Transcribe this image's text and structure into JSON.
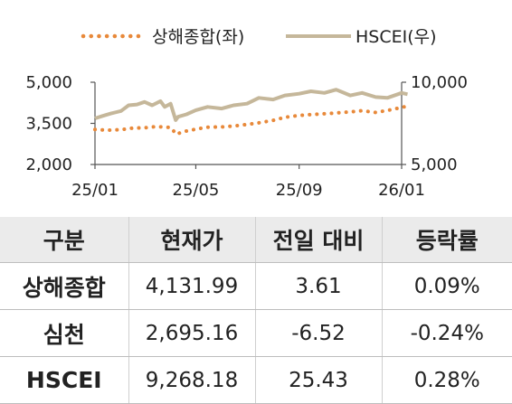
{
  "chart_data": {
    "type": "line",
    "legend": [
      {
        "name": "상해종합(좌)",
        "style": "dotted",
        "color": "#e8893a"
      },
      {
        "name": "HSCEI(우)",
        "style": "solid",
        "color": "#c5b79a"
      }
    ],
    "legend_position": "top",
    "x_ticks": [
      "25/01",
      "25/05",
      "25/09",
      "26/01"
    ],
    "y_left": {
      "ticks": [
        "2,000",
        "3,500",
        "5,000"
      ],
      "range": [
        2000,
        5000
      ]
    },
    "y_right": {
      "ticks": [
        "5,000",
        "10,000"
      ],
      "range": [
        5000,
        10000
      ]
    },
    "grid": false,
    "series": [
      {
        "name": "상해종합(좌)",
        "axis": "left",
        "x": [
          "2025-01-01",
          "2025-01-15",
          "2025-02-01",
          "2025-02-15",
          "2025-03-01",
          "2025-03-15",
          "2025-04-01",
          "2025-04-08",
          "2025-04-15",
          "2025-05-01",
          "2025-05-15",
          "2025-06-01",
          "2025-06-15",
          "2025-07-01",
          "2025-07-15",
          "2025-08-01",
          "2025-08-15",
          "2025-09-01",
          "2025-09-15",
          "2025-10-01",
          "2025-10-15",
          "2025-11-01",
          "2025-11-15",
          "2025-12-01",
          "2025-12-15",
          "2026-01-01",
          "2026-01-08"
        ],
        "values": [
          3280,
          3250,
          3270,
          3330,
          3340,
          3380,
          3350,
          3100,
          3190,
          3290,
          3360,
          3370,
          3400,
          3460,
          3520,
          3610,
          3720,
          3790,
          3820,
          3850,
          3880,
          3920,
          3960,
          3900,
          3970,
          4080,
          4132
        ]
      },
      {
        "name": "HSCEI(우)",
        "axis": "right",
        "x": [
          "2025-01-01",
          "2025-01-10",
          "2025-01-20",
          "2025-02-01",
          "2025-02-10",
          "2025-02-20",
          "2025-03-01",
          "2025-03-10",
          "2025-03-20",
          "2025-03-25",
          "2025-04-01",
          "2025-04-07",
          "2025-04-10",
          "2025-04-20",
          "2025-05-01",
          "2025-05-15",
          "2025-06-01",
          "2025-06-15",
          "2025-07-01",
          "2025-07-15",
          "2025-08-01",
          "2025-08-15",
          "2025-09-01",
          "2025-09-15",
          "2025-10-01",
          "2025-10-15",
          "2025-11-01",
          "2025-11-15",
          "2025-12-01",
          "2025-12-15",
          "2026-01-01",
          "2026-01-08"
        ],
        "values": [
          7800,
          7950,
          8100,
          8250,
          8600,
          8650,
          8800,
          8600,
          8850,
          8500,
          8700,
          7700,
          7900,
          8050,
          8300,
          8500,
          8400,
          8600,
          8700,
          9050,
          8950,
          9200,
          9300,
          9450,
          9350,
          9550,
          9200,
          9350,
          9100,
          9050,
          9350,
          9268
        ]
      }
    ]
  },
  "table": {
    "headers": [
      "구분",
      "현재가",
      "전일 대비",
      "등락률"
    ],
    "rows": [
      {
        "name": "상해종합",
        "price": "4,131.99",
        "change": "3.61",
        "rate": "0.09%"
      },
      {
        "name": "심천",
        "price": "2,695.16",
        "change": "-6.52",
        "rate": "-0.24%"
      },
      {
        "name": "HSCEI",
        "price": "9,268.18",
        "change": "25.43",
        "rate": "0.28%"
      }
    ]
  }
}
